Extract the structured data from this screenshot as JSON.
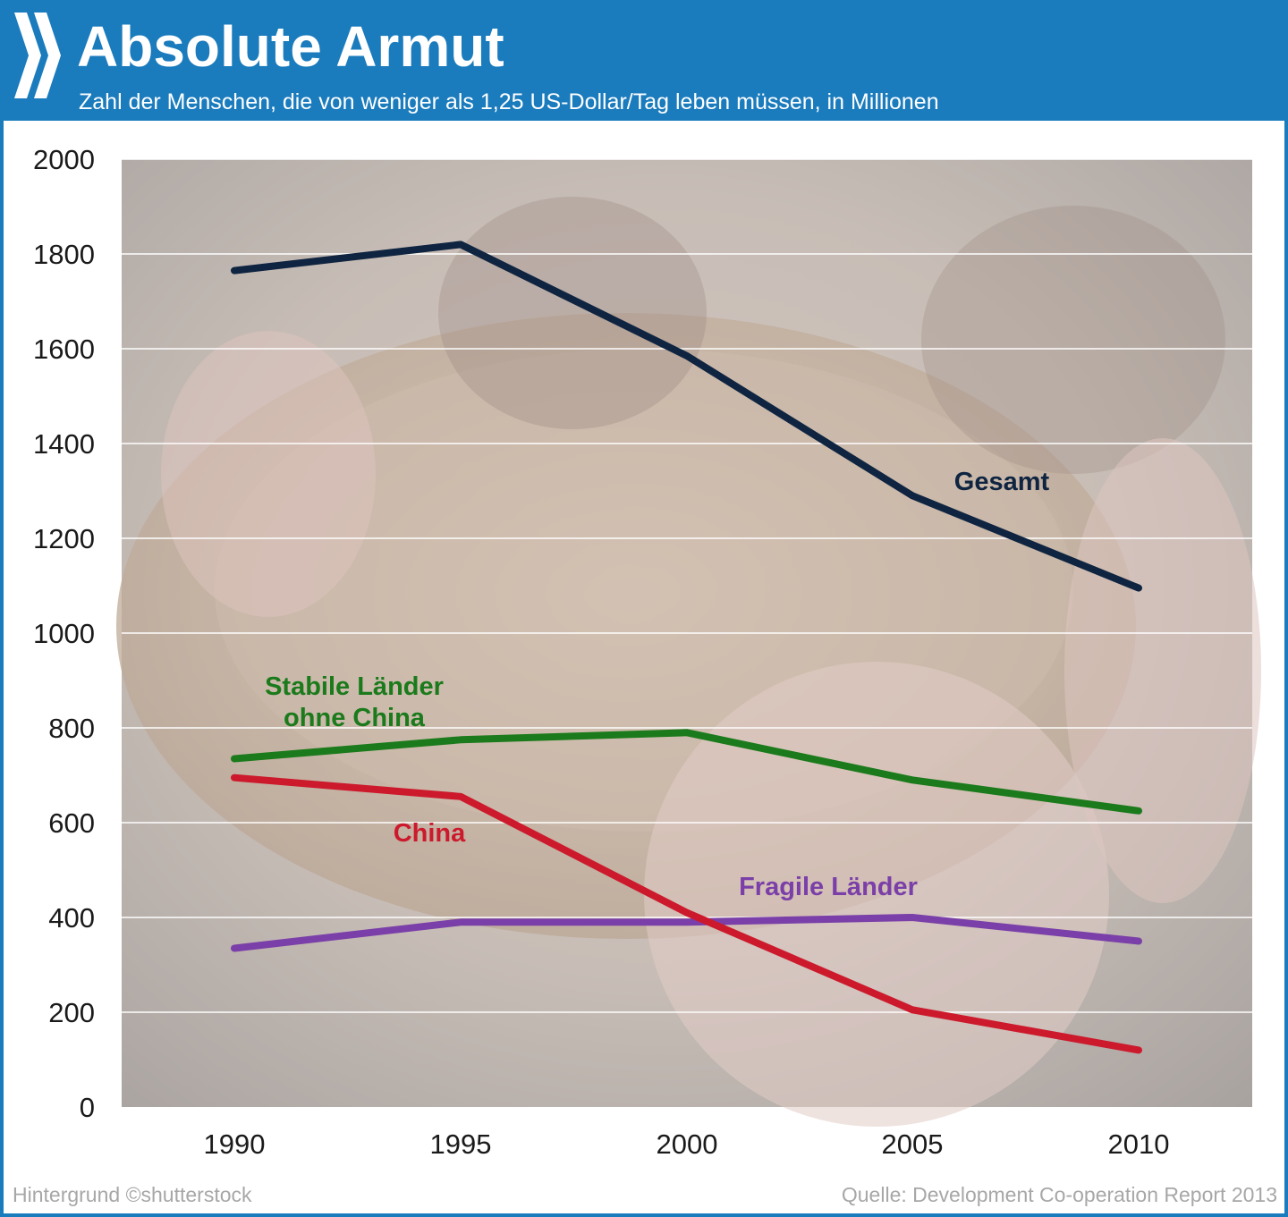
{
  "header": {
    "title": "Absolute Armut",
    "subtitle": "Zahl der Menschen, die von weniger als 1,25 US-Dollar/Tag leben müssen, in Millionen",
    "logo_icon": "oecd-chevron-logo-icon",
    "background_color": "#1a7bbd"
  },
  "footer": {
    "credit": "Hintergrund ©shutterstock",
    "source": "Quelle: Development Co-operation Report 2013"
  },
  "chart_data": {
    "type": "line",
    "x": [
      1990,
      1995,
      2000,
      2005,
      2010
    ],
    "ylim": [
      0,
      2000
    ],
    "yticks": [
      0,
      200,
      400,
      600,
      800,
      1000,
      1200,
      1400,
      1600,
      1800,
      2000
    ],
    "grid": true,
    "legend": "inline labels",
    "series": [
      {
        "name": "Gesamt",
        "color": "#0f2440",
        "values": [
          1765,
          1820,
          1585,
          1290,
          1095
        ]
      },
      {
        "name": "Stabile Länder ohne China",
        "label_lines": [
          "Stabile Länder",
          "ohne China"
        ],
        "color": "#1b7a1b",
        "values": [
          735,
          775,
          790,
          690,
          625
        ]
      },
      {
        "name": "China",
        "color": "#cc1a2c",
        "values": [
          695,
          655,
          410,
          205,
          120
        ]
      },
      {
        "name": "Fragile Länder",
        "color": "#7a3fa8",
        "values": [
          335,
          390,
          390,
          400,
          350
        ]
      }
    ]
  }
}
